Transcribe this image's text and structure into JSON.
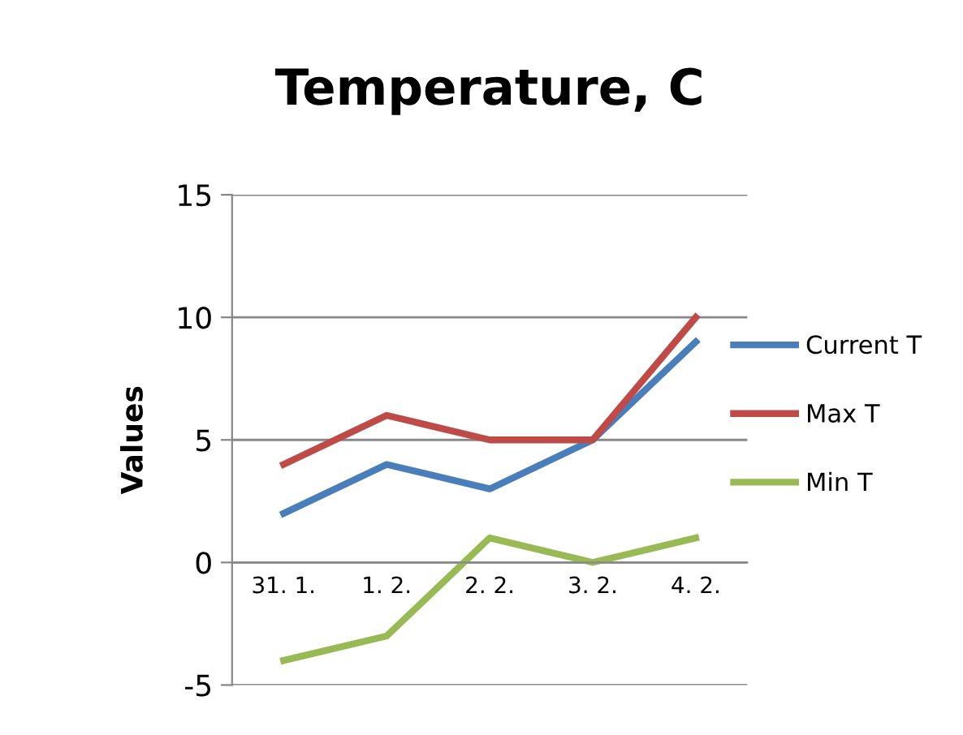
{
  "chart_data": {
    "type": "line",
    "title": "Temperature, C",
    "ylabel": "Values",
    "categories": [
      "31. 1.",
      "1. 2.",
      "2. 2.",
      "3. 2.",
      "4. 2."
    ],
    "series": [
      {
        "name": "Current T",
        "color": "#4a7ebb",
        "values": [
          2,
          4,
          3,
          5,
          9
        ]
      },
      {
        "name": "Max T",
        "color": "#be4b48",
        "values": [
          4,
          6,
          5,
          5,
          10
        ]
      },
      {
        "name": "Min T",
        "color": "#98b954",
        "values": [
          -4,
          -3,
          1,
          0,
          1
        ]
      }
    ],
    "ylim": [
      -5,
      15
    ],
    "yticks": [
      -5,
      0,
      5,
      10,
      15
    ],
    "grid": "y",
    "legend": "right",
    "marker": "none",
    "line_style": "solid"
  }
}
